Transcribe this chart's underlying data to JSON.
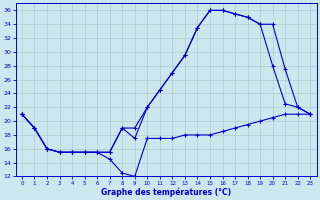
{
  "title": "Graphe des températures (°C)",
  "bg_color": "#cce8ee",
  "line_color": "#0000cc",
  "grid_color": "#aacccc",
  "ylim": [
    12,
    37
  ],
  "xlim": [
    -0.5,
    23.5
  ],
  "yticks": [
    12,
    14,
    16,
    18,
    20,
    22,
    24,
    26,
    28,
    30,
    32,
    34,
    36
  ],
  "xticks": [
    0,
    1,
    2,
    3,
    4,
    5,
    6,
    7,
    8,
    9,
    10,
    11,
    12,
    13,
    14,
    15,
    16,
    17,
    18,
    19,
    20,
    21,
    22,
    23
  ],
  "line1_x": [
    0,
    1,
    2,
    3,
    4,
    5,
    6,
    7,
    8,
    9,
    10,
    11,
    12,
    13,
    14,
    15,
    16,
    17,
    18,
    19,
    20,
    21,
    22,
    23
  ],
  "line1_y": [
    21,
    19,
    16,
    15.5,
    15.5,
    15.5,
    15.5,
    14.5,
    12.5,
    12,
    17.5,
    17.5,
    17.5,
    18,
    18,
    18,
    18.5,
    19,
    19.5,
    20,
    20.5,
    21,
    21,
    21
  ],
  "line2_x": [
    0,
    1,
    2,
    3,
    4,
    5,
    6,
    7,
    8,
    9,
    10,
    11,
    12,
    13,
    14,
    15,
    16,
    17,
    18,
    19,
    20,
    21,
    22,
    23
  ],
  "line2_y": [
    21,
    19,
    16,
    15.5,
    15.5,
    15.5,
    15.5,
    15.5,
    19,
    19,
    22,
    24.5,
    27,
    29.5,
    33.5,
    36,
    36,
    35.5,
    35,
    34,
    28,
    22.5,
    22,
    21
  ],
  "line3_x": [
    0,
    1,
    2,
    3,
    4,
    5,
    6,
    7,
    8,
    9,
    10,
    11,
    12,
    13,
    14,
    15,
    16,
    17,
    18,
    19,
    20,
    21,
    22,
    23
  ],
  "line3_y": [
    21,
    19,
    16,
    15.5,
    15.5,
    15.5,
    15.5,
    15.5,
    19,
    17.5,
    22,
    24.5,
    27,
    29.5,
    33.5,
    36,
    36,
    35.5,
    35,
    34,
    34,
    27.5,
    22,
    21
  ]
}
